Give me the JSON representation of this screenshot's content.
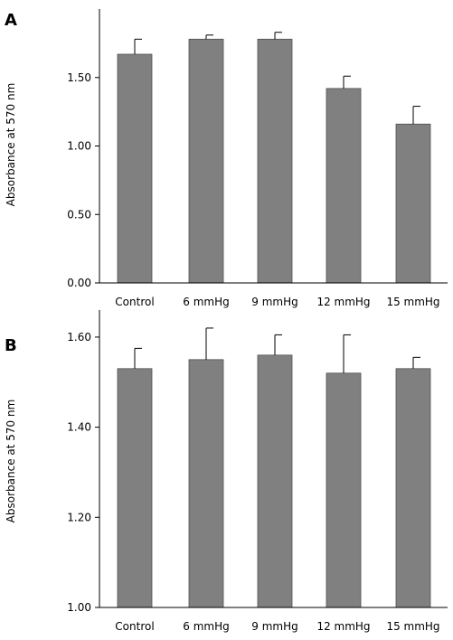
{
  "chart_data": [
    {
      "panel": "A",
      "type": "bar",
      "categories": [
        "Control",
        "6 mmHg",
        "9 mmHg",
        "12 mmHg",
        "15 mmHg"
      ],
      "values": [
        1.67,
        1.78,
        1.78,
        1.42,
        1.16
      ],
      "errors": [
        0.11,
        0.03,
        0.05,
        0.09,
        0.13
      ],
      "ylabel": "Absorbance at 570 nm",
      "yticks": [
        "0.00",
        "0.50",
        "1.00",
        "1.50"
      ],
      "ylim": [
        0,
        2.0
      ],
      "bar_color": "#808080",
      "grid": false
    },
    {
      "panel": "B",
      "type": "bar",
      "categories": [
        "Control",
        "6 mmHg",
        "9 mmHg",
        "12 mmHg",
        "15 mmHg"
      ],
      "values": [
        1.53,
        1.55,
        1.56,
        1.52,
        1.53
      ],
      "errors": [
        0.045,
        0.07,
        0.045,
        0.085,
        0.025
      ],
      "ylabel": "Absorbance at 570 nm",
      "yticks": [
        "1.00",
        "1.20",
        "1.40",
        "1.60"
      ],
      "ylim": [
        1.0,
        1.66
      ],
      "bar_color": "#808080",
      "grid": false
    }
  ]
}
